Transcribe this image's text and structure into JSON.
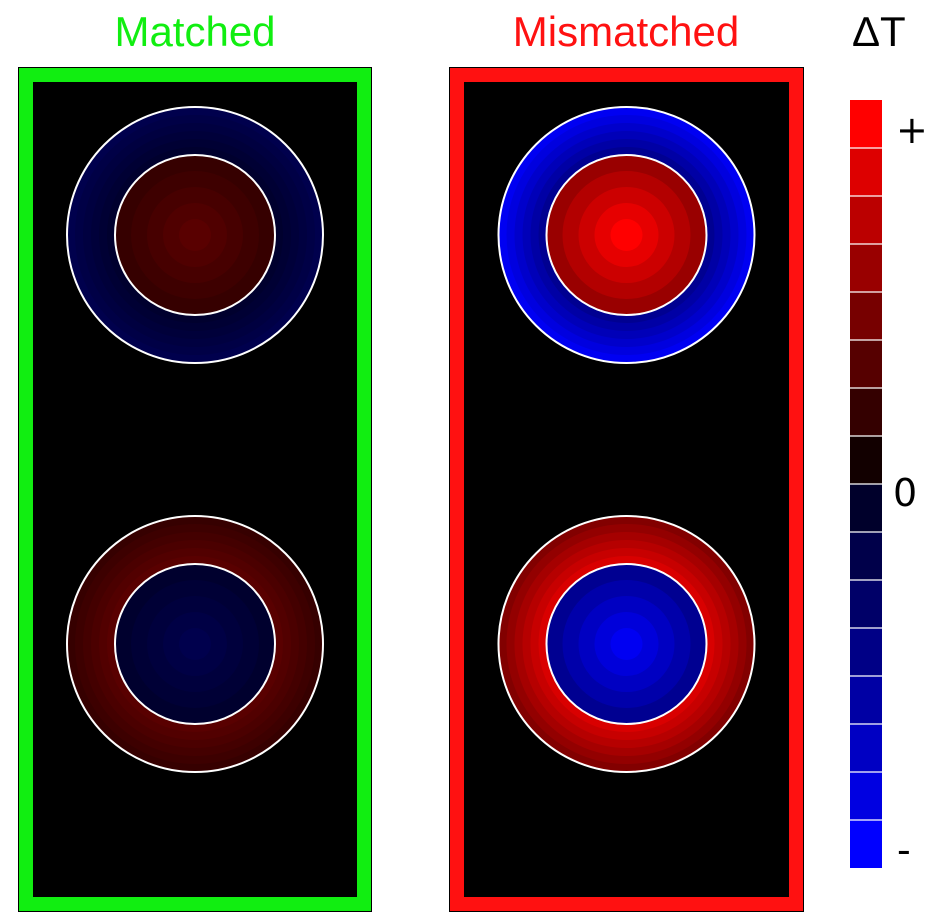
{
  "titles": {
    "matched": "Matched",
    "mismatched": "Mismatched",
    "colorbar": "ΔT"
  },
  "colors": {
    "matched_frame": "#11ee11",
    "mismatched_frame": "#ff1111",
    "background": "#000000",
    "ring_outline": "#ffffff"
  },
  "colorbar": {
    "labels": {
      "top": "+",
      "middle": "0",
      "bottom": "-"
    },
    "levels": 16,
    "top_color": "#ff0000",
    "bottom_color": "#0000ff"
  },
  "panels": [
    {
      "name": "matched",
      "frame_color": "#11ee11",
      "ring_pairs": [
        {
          "outer_sign": "negative",
          "outer_level": 0.3,
          "inner_sign": "positive",
          "inner_level": 0.35
        },
        {
          "outer_sign": "positive",
          "outer_level": 0.35,
          "inner_sign": "negative",
          "inner_level": 0.3
        }
      ]
    },
    {
      "name": "mismatched",
      "frame_color": "#ff1111",
      "ring_pairs": [
        {
          "outer_sign": "negative",
          "outer_level": 0.95,
          "inner_sign": "positive",
          "inner_level": 1.0
        },
        {
          "outer_sign": "positive",
          "outer_level": 0.85,
          "inner_sign": "negative",
          "inner_level": 0.95
        }
      ]
    }
  ]
}
